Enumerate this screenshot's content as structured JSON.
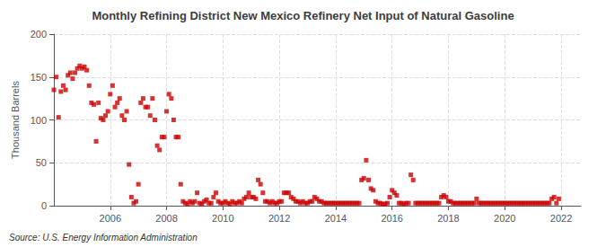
{
  "chart_data": {
    "type": "scatter",
    "title": "Monthly Refining District New Mexico Refinery Net Input of Natural Gasoline",
    "ylabel": "Thousand Barrels",
    "annotation": "Source: U.S. Energy Information Administration",
    "color": "#cc0000",
    "marker": "square",
    "grid": true,
    "xlim": [
      2004.0,
      2022.7
    ],
    "xticks": [
      2006,
      2008,
      2010,
      2012,
      2014,
      2016,
      2018,
      2020,
      2022
    ],
    "ylim": [
      0,
      200
    ],
    "yticks": [
      0,
      50,
      100,
      150,
      200
    ],
    "x": [
      2004.0,
      2004.083,
      2004.167,
      2004.25,
      2004.333,
      2004.417,
      2004.5,
      2004.583,
      2004.667,
      2004.75,
      2004.833,
      2004.917,
      2005.0,
      2005.083,
      2005.167,
      2005.25,
      2005.333,
      2005.417,
      2005.5,
      2005.583,
      2005.667,
      2005.75,
      2005.833,
      2005.917,
      2006.0,
      2006.083,
      2006.167,
      2006.25,
      2006.333,
      2006.417,
      2006.5,
      2006.583,
      2006.667,
      2006.75,
      2006.833,
      2006.917,
      2007.0,
      2007.083,
      2007.167,
      2007.25,
      2007.333,
      2007.417,
      2007.5,
      2007.583,
      2007.667,
      2007.75,
      2007.833,
      2007.917,
      2008.0,
      2008.083,
      2008.167,
      2008.25,
      2008.333,
      2008.417,
      2008.5,
      2008.583,
      2008.667,
      2008.75,
      2008.833,
      2008.917,
      2009.0,
      2009.083,
      2009.167,
      2009.25,
      2009.333,
      2009.417,
      2009.5,
      2009.583,
      2009.667,
      2009.75,
      2009.833,
      2009.917,
      2010.0,
      2010.083,
      2010.167,
      2010.25,
      2010.333,
      2010.417,
      2010.5,
      2010.583,
      2010.667,
      2010.75,
      2010.833,
      2010.917,
      2011.0,
      2011.083,
      2011.167,
      2011.25,
      2011.333,
      2011.417,
      2011.5,
      2011.583,
      2011.667,
      2011.75,
      2011.833,
      2011.917,
      2012.0,
      2012.083,
      2012.167,
      2012.25,
      2012.333,
      2012.417,
      2012.5,
      2012.583,
      2012.667,
      2012.75,
      2012.833,
      2012.917,
      2013.0,
      2013.083,
      2013.167,
      2013.25,
      2013.333,
      2013.417,
      2013.5,
      2013.583,
      2013.667,
      2013.75,
      2013.833,
      2013.917,
      2014.0,
      2014.083,
      2014.167,
      2014.25,
      2014.333,
      2014.417,
      2014.5,
      2014.583,
      2014.667,
      2014.75,
      2014.833,
      2014.917,
      2015.0,
      2015.083,
      2015.167,
      2015.25,
      2015.333,
      2015.417,
      2015.5,
      2015.583,
      2015.667,
      2015.75,
      2015.833,
      2015.917,
      2016.0,
      2016.083,
      2016.167,
      2016.25,
      2016.333,
      2016.417,
      2016.5,
      2016.583,
      2016.667,
      2016.75,
      2016.833,
      2016.917,
      2017.0,
      2017.083,
      2017.167,
      2017.25,
      2017.333,
      2017.417,
      2017.5,
      2017.583,
      2017.667,
      2017.75,
      2017.833,
      2017.917,
      2018.0,
      2018.083,
      2018.167,
      2018.25,
      2018.333,
      2018.417,
      2018.5,
      2018.583,
      2018.667,
      2018.75,
      2018.833,
      2018.917,
      2019.0,
      2019.083,
      2019.167,
      2019.25,
      2019.333,
      2019.417,
      2019.5,
      2019.583,
      2019.667,
      2019.75,
      2019.833,
      2019.917,
      2020.0,
      2020.083,
      2020.167,
      2020.25,
      2020.333,
      2020.417,
      2020.5,
      2020.583,
      2020.667,
      2020.75,
      2020.833,
      2020.917,
      2021.0,
      2021.083,
      2021.167,
      2021.25,
      2021.333,
      2021.417,
      2021.5,
      2021.583,
      2021.667,
      2021.75,
      2021.833,
      2021.917
    ],
    "values": [
      135,
      150,
      103,
      133,
      140,
      135,
      152,
      155,
      148,
      155,
      160,
      163,
      160,
      162,
      158,
      140,
      120,
      118,
      75,
      120,
      102,
      100,
      105,
      110,
      130,
      140,
      115,
      120,
      125,
      105,
      100,
      110,
      48,
      10,
      3,
      5,
      25,
      120,
      125,
      115,
      115,
      105,
      125,
      100,
      70,
      65,
      80,
      80,
      110,
      130,
      125,
      100,
      80,
      80,
      25,
      5,
      3,
      2,
      5,
      3,
      5,
      15,
      3,
      2,
      5,
      7,
      3,
      3,
      10,
      15,
      5,
      3,
      3,
      5,
      3,
      2,
      5,
      3,
      3,
      5,
      3,
      8,
      10,
      15,
      10,
      10,
      8,
      30,
      25,
      15,
      5,
      5,
      3,
      5,
      3,
      3,
      5,
      5,
      15,
      15,
      15,
      10,
      8,
      5,
      5,
      3,
      5,
      3,
      3,
      5,
      5,
      10,
      8,
      5,
      5,
      3,
      3,
      3,
      3,
      3,
      3,
      3,
      3,
      3,
      3,
      3,
      3,
      3,
      3,
      3,
      3,
      30,
      32,
      53,
      30,
      20,
      18,
      5,
      3,
      3,
      2,
      2,
      3,
      10,
      18,
      15,
      12,
      3,
      3,
      2,
      3,
      3,
      36,
      30,
      3,
      3,
      3,
      3,
      3,
      3,
      3,
      3,
      3,
      3,
      3,
      10,
      12,
      10,
      5,
      5,
      3,
      3,
      3,
      3,
      3,
      3,
      3,
      3,
      3,
      3,
      8,
      3,
      3,
      3,
      3,
      3,
      3,
      3,
      3,
      3,
      3,
      3,
      3,
      3,
      3,
      3,
      3,
      3,
      3,
      3,
      3,
      3,
      3,
      3,
      3,
      3,
      3,
      3,
      3,
      3,
      3,
      3,
      8,
      10,
      3,
      8
    ]
  }
}
